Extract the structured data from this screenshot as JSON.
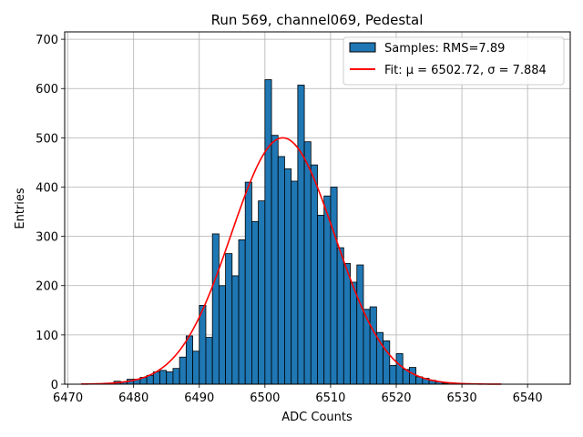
{
  "chart_data": {
    "type": "bar",
    "title": "Run 569, channel069, Pedestal",
    "xlabel": "ADC Counts",
    "ylabel": "Entries",
    "xlim": [
      6469.5,
      6546.5
    ],
    "ylim": [
      0,
      715
    ],
    "xticks": [
      6470,
      6480,
      6490,
      6500,
      6510,
      6520,
      6530,
      6540
    ],
    "yticks": [
      0,
      100,
      200,
      300,
      400,
      500,
      600,
      700
    ],
    "grid": true,
    "legend_position": "upper-right",
    "bin_width": 1,
    "histogram": {
      "name": "Samples: RMS=7.89",
      "color": "#1f77b4",
      "edgecolor": "#000000",
      "bin_left_edges": [
        6477,
        6478,
        6479,
        6480,
        6481,
        6482,
        6483,
        6484,
        6485,
        6486,
        6487,
        6488,
        6489,
        6490,
        6491,
        6492,
        6493,
        6494,
        6495,
        6496,
        6497,
        6498,
        6499,
        6500,
        6501,
        6502,
        6503,
        6504,
        6505,
        6506,
        6507,
        6508,
        6509,
        6510,
        6511,
        6512,
        6513,
        6514,
        6515,
        6516,
        6517,
        6518,
        6519,
        6520,
        6521,
        6522,
        6523,
        6524,
        6525,
        6526,
        6527
      ],
      "counts": [
        6,
        5,
        10,
        10,
        14,
        18,
        25,
        28,
        25,
        32,
        55,
        98,
        67,
        160,
        95,
        305,
        200,
        265,
        220,
        293,
        410,
        330,
        372,
        618,
        505,
        462,
        437,
        412,
        607,
        492,
        445,
        343,
        382,
        400,
        277,
        245,
        207,
        242,
        152,
        157,
        105,
        88,
        38,
        62,
        30,
        34,
        15,
        12,
        8,
        5,
        2
      ]
    },
    "fit": {
      "name": "Fit: μ = 6502.72, σ = 7.884",
      "color": "#ff0000",
      "mu": 6502.72,
      "sigma": 7.884,
      "amplitude": 500,
      "x_range": [
        6472,
        6536
      ]
    }
  }
}
